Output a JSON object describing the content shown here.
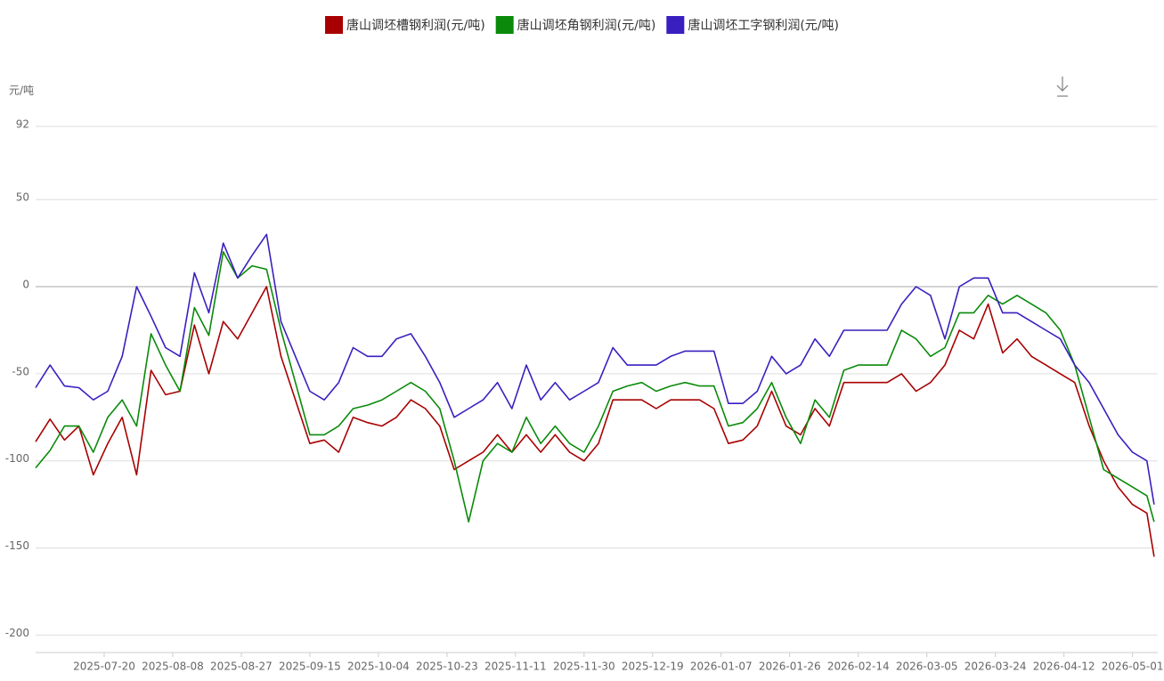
{
  "chart_data": {
    "type": "line",
    "y_unit": "元/吨",
    "x": [
      "2025-07-01",
      "2025-07-05",
      "2025-07-09",
      "2025-07-13",
      "2025-07-17",
      "2025-07-21",
      "2025-07-25",
      "2025-07-29",
      "2025-08-02",
      "2025-08-06",
      "2025-08-10",
      "2025-08-14",
      "2025-08-18",
      "2025-08-22",
      "2025-08-26",
      "2025-08-30",
      "2025-09-03",
      "2025-09-07",
      "2025-09-11",
      "2025-09-15",
      "2025-09-19",
      "2025-09-23",
      "2025-09-27",
      "2025-10-01",
      "2025-10-05",
      "2025-10-09",
      "2025-10-13",
      "2025-10-17",
      "2025-10-21",
      "2025-10-25",
      "2025-10-29",
      "2025-11-02",
      "2025-11-06",
      "2025-11-10",
      "2025-11-14",
      "2025-11-18",
      "2025-11-22",
      "2025-11-26",
      "2025-11-30",
      "2025-12-04",
      "2025-12-08",
      "2025-12-12",
      "2025-12-16",
      "2025-12-20",
      "2025-12-24",
      "2025-12-28",
      "2026-01-01",
      "2026-01-05",
      "2026-01-09",
      "2026-01-13",
      "2026-01-17",
      "2026-01-21",
      "2026-01-25",
      "2026-01-29",
      "2026-02-02",
      "2026-02-06",
      "2026-02-10",
      "2026-02-14",
      "2026-02-18",
      "2026-02-22",
      "2026-02-26",
      "2026-03-02",
      "2026-03-06",
      "2026-03-10",
      "2026-03-14",
      "2026-03-18",
      "2026-03-22",
      "2026-03-26",
      "2026-03-30",
      "2026-04-03",
      "2026-04-07",
      "2026-04-11",
      "2026-04-15",
      "2026-04-19",
      "2026-04-23",
      "2026-04-27",
      "2026-05-01",
      "2026-05-05",
      "2026-05-07"
    ],
    "series": [
      {
        "name": "唐山调坯槽钢利润(元/吨)",
        "color": "#a80000",
        "values": [
          -89,
          -76,
          -88,
          -80,
          -108,
          -90,
          -75,
          -108,
          -48,
          -62,
          -60,
          -22,
          -50,
          -20,
          -30,
          -15,
          0,
          -40,
          -65,
          -90,
          -88,
          -95,
          -75,
          -78,
          -80,
          -75,
          -65,
          -70,
          -80,
          -105,
          -100,
          -95,
          -85,
          -95,
          -85,
          -95,
          -85,
          -95,
          -100,
          -90,
          -65,
          -65,
          -65,
          -70,
          -65,
          -65,
          -65,
          -70,
          -90,
          -88,
          -80,
          -60,
          -80,
          -85,
          -70,
          -80,
          -55,
          -55,
          -55,
          -55,
          -50,
          -60,
          -55,
          -45,
          -25,
          -30,
          -10,
          -38,
          -30,
          -40,
          -45,
          -50,
          -55,
          -80,
          -100,
          -115,
          -125,
          -130,
          -155
        ]
      },
      {
        "name": "唐山调坯角钢利润(元/吨)",
        "color": "#0a8a0a",
        "values": [
          -104,
          -94,
          -80,
          -80,
          -95,
          -75,
          -65,
          -80,
          -27,
          -45,
          -60,
          -12,
          -28,
          20,
          5,
          12,
          10,
          -25,
          -55,
          -85,
          -85,
          -80,
          -70,
          -68,
          -65,
          -60,
          -55,
          -60,
          -70,
          -100,
          -135,
          -100,
          -90,
          -95,
          -75,
          -90,
          -80,
          -90,
          -95,
          -80,
          -60,
          -57,
          -55,
          -60,
          -57,
          -55,
          -57,
          -57,
          -80,
          -78,
          -70,
          -55,
          -75,
          -90,
          -65,
          -75,
          -48,
          -45,
          -45,
          -45,
          -25,
          -30,
          -40,
          -35,
          -15,
          -15,
          -5,
          -10,
          -5,
          -10,
          -15,
          -25,
          -45,
          -75,
          -105,
          -110,
          -115,
          -120,
          -135
        ]
      },
      {
        "name": "唐山调坯工字钢利润(元/吨)",
        "color": "#3a1fc0",
        "values": [
          -58,
          -45,
          -57,
          -58,
          -65,
          -60,
          -40,
          0,
          -17,
          -35,
          -40,
          8,
          -15,
          25,
          5,
          18,
          30,
          -20,
          -40,
          -60,
          -65,
          -55,
          -35,
          -40,
          -40,
          -30,
          -27,
          -40,
          -55,
          -75,
          -70,
          -65,
          -55,
          -70,
          -45,
          -65,
          -55,
          -65,
          -60,
          -55,
          -35,
          -45,
          -45,
          -45,
          -40,
          -37,
          -37,
          -37,
          -67,
          -67,
          -60,
          -40,
          -50,
          -45,
          -30,
          -40,
          -25,
          -25,
          -25,
          -25,
          -10,
          0,
          -5,
          -30,
          0,
          5,
          5,
          -15,
          -15,
          -20,
          -25,
          -30,
          -45,
          -55,
          -70,
          -85,
          -95,
          -100,
          -125
        ]
      }
    ],
    "xlim": [
      "2025-07-01",
      "2026-05-08"
    ],
    "xticks": [
      "2025-07-20",
      "2025-08-08",
      "2025-08-27",
      "2025-09-15",
      "2025-10-04",
      "2025-10-23",
      "2025-11-11",
      "2025-11-30",
      "2025-12-19",
      "2026-01-07",
      "2026-01-26",
      "2026-02-14",
      "2026-03-05",
      "2026-03-24",
      "2026-04-12",
      "2026-05-01"
    ],
    "ylim": [
      -210,
      92
    ],
    "yticks": [
      -200,
      -150,
      -100,
      -50,
      0,
      50,
      92
    ],
    "grid": true
  }
}
